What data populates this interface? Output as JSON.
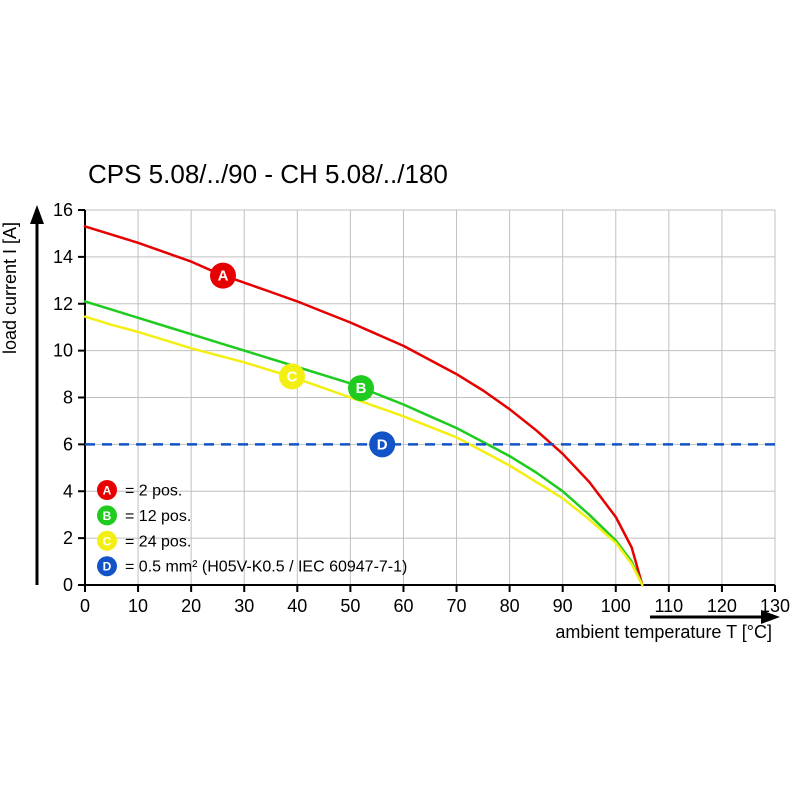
{
  "chart_data": {
    "type": "line",
    "title": "CPS 5.08/../90 - CH 5.08/../180",
    "xlabel": "ambient temperature T [°C]",
    "ylabel": "load current I [A]",
    "xlim": [
      0,
      130
    ],
    "ylim": [
      0,
      16
    ],
    "xticks": [
      0,
      10,
      20,
      30,
      40,
      50,
      60,
      70,
      80,
      90,
      100,
      110,
      120,
      130
    ],
    "yticks": [
      0,
      2,
      4,
      6,
      8,
      10,
      12,
      14,
      16
    ],
    "grid": true,
    "colors": {
      "axis": "#000000",
      "grid": "#c0c0c0",
      "background": "#ffffff"
    },
    "series": [
      {
        "id": "A",
        "name": "2 pos.",
        "color": "#e60000",
        "line_style": "solid",
        "x": [
          0,
          5,
          10,
          15,
          20,
          25,
          30,
          35,
          40,
          45,
          50,
          55,
          60,
          65,
          70,
          75,
          80,
          85,
          90,
          95,
          100,
          103,
          105
        ],
        "y": [
          15.3,
          14.95,
          14.6,
          14.2,
          13.8,
          13.3,
          12.9,
          12.5,
          12.1,
          11.65,
          11.2,
          10.7,
          10.2,
          9.6,
          9.0,
          8.3,
          7.5,
          6.6,
          5.6,
          4.4,
          2.9,
          1.6,
          0
        ],
        "marker": {
          "x": 26,
          "y": 13.2,
          "label": "A"
        }
      },
      {
        "id": "B",
        "name": "12 pos.",
        "color": "#1ecb1e",
        "line_style": "solid",
        "x": [
          0,
          5,
          10,
          15,
          20,
          25,
          30,
          35,
          40,
          45,
          50,
          55,
          60,
          65,
          70,
          75,
          80,
          85,
          90,
          95,
          100,
          103,
          105
        ],
        "y": [
          12.1,
          11.75,
          11.4,
          11.05,
          10.7,
          10.35,
          10.0,
          9.65,
          9.3,
          8.95,
          8.6,
          8.15,
          7.7,
          7.2,
          6.7,
          6.1,
          5.5,
          4.8,
          4.0,
          3.0,
          1.9,
          1.0,
          0
        ],
        "marker": {
          "x": 52,
          "y": 8.4,
          "label": "B"
        }
      },
      {
        "id": "C",
        "name": "24 pos.",
        "color": "#f3ef12",
        "line_style": "solid",
        "x": [
          0,
          5,
          10,
          15,
          20,
          25,
          30,
          35,
          40,
          45,
          50,
          55,
          60,
          65,
          70,
          75,
          80,
          85,
          90,
          95,
          100,
          103,
          105
        ],
        "y": [
          11.45,
          11.1,
          10.8,
          10.45,
          10.1,
          9.8,
          9.5,
          9.15,
          8.8,
          8.4,
          8.0,
          7.6,
          7.2,
          6.75,
          6.3,
          5.7,
          5.1,
          4.4,
          3.7,
          2.8,
          1.8,
          0.9,
          0
        ],
        "marker": {
          "x": 39,
          "y": 8.9,
          "label": "C"
        }
      },
      {
        "id": "D",
        "name": "0.5 mm² (H05V-K0.5 / IEC 60947-7-1)",
        "color": "#1253c8",
        "line_style": "dashed",
        "const_y": 6,
        "marker": {
          "x": 56,
          "y": 6,
          "label": "D"
        }
      }
    ],
    "legend": {
      "position": "inside-bottom-left",
      "items": [
        {
          "id": "A",
          "color": "#e60000",
          "label": "= 2 pos."
        },
        {
          "id": "B",
          "color": "#1ecb1e",
          "label": "= 12 pos."
        },
        {
          "id": "C",
          "color": "#f3ef12",
          "label": "= 24 pos."
        },
        {
          "id": "D",
          "color": "#1253c8",
          "label": "= 0.5 mm² (H05V-K0.5 / IEC 60947-7-1)"
        }
      ]
    }
  }
}
